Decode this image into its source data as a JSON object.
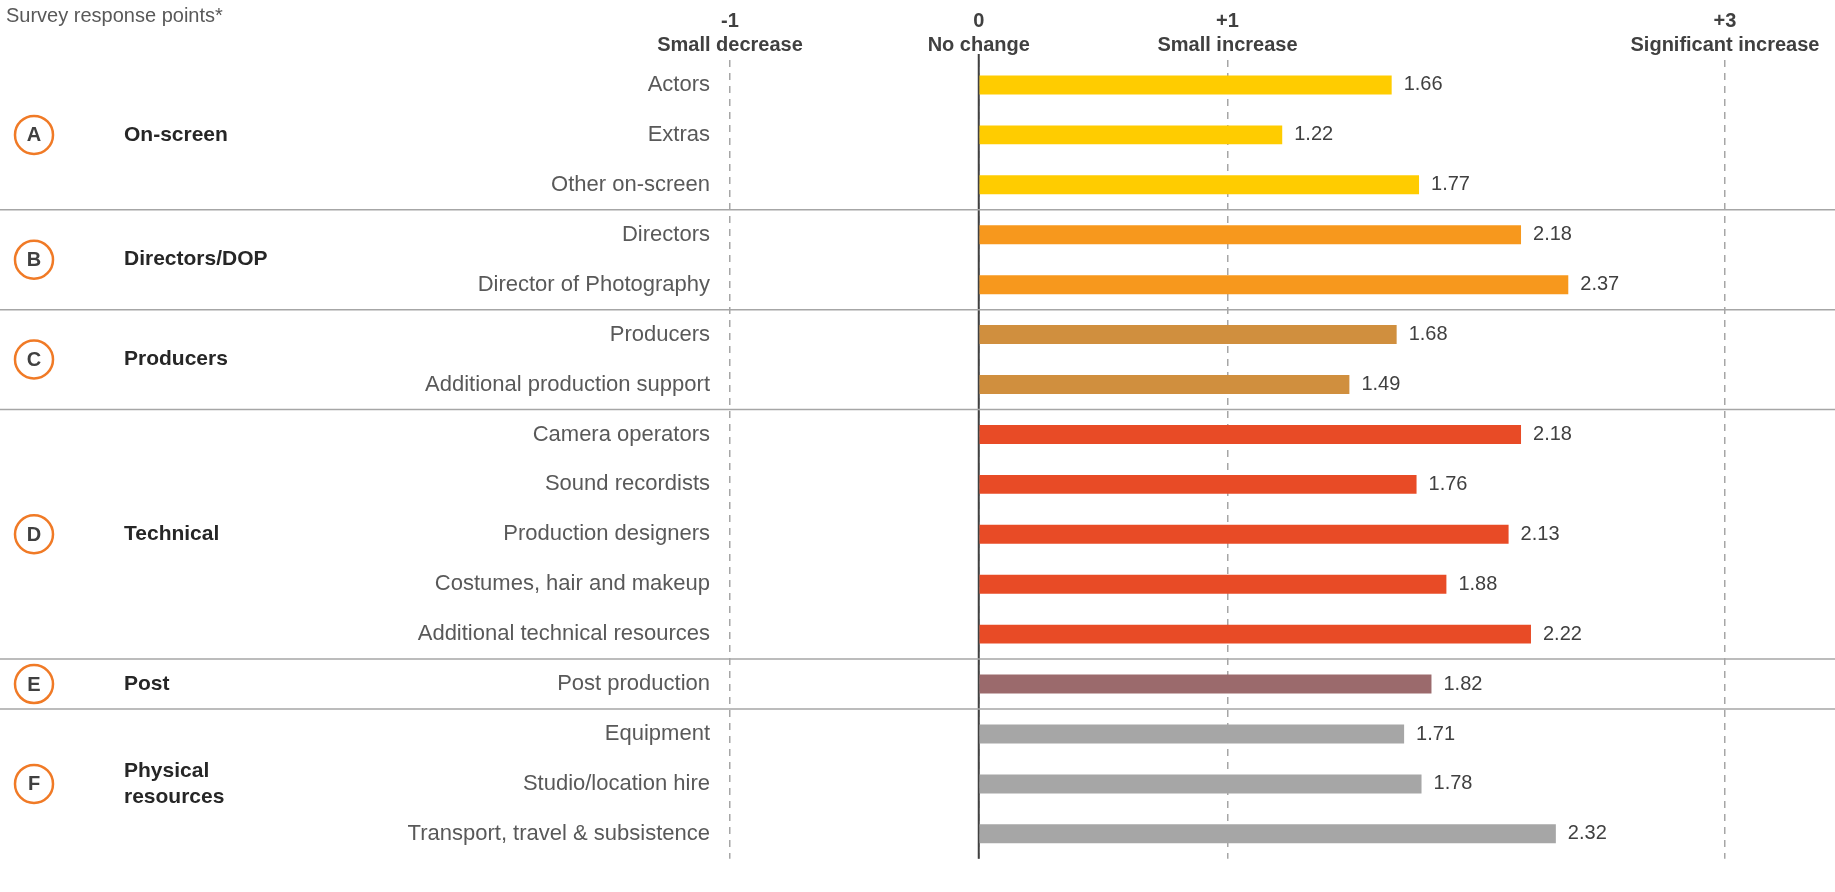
{
  "chart_data": {
    "type": "bar",
    "orientation": "horizontal",
    "title": "Survey response points*",
    "categories": [
      "Actors",
      "Extras",
      "Other on-screen",
      "Directors",
      "Director of Photography",
      "Producers",
      "Additional production support",
      "Camera operators",
      "Sound recordists",
      "Production designers",
      "Costumes, hair and makeup",
      "Additional technical resources",
      "Post production",
      "Equipment",
      "Studio/location hire",
      "Transport, travel & subsistence"
    ],
    "values": [
      1.66,
      1.22,
      1.77,
      2.18,
      2.37,
      1.68,
      1.49,
      2.18,
      1.76,
      2.13,
      1.88,
      2.22,
      1.82,
      1.71,
      1.78,
      2.32
    ],
    "colors": [
      "#ffcc00",
      "#ffcc00",
      "#ffcc00",
      "#f7981d",
      "#f7981d",
      "#d08f3e",
      "#d08f3e",
      "#e84b26",
      "#e84b26",
      "#e84b26",
      "#e84b26",
      "#e84b26",
      "#9b6a6c",
      "#a6a6a6",
      "#a6a6a6",
      "#a6a6a6"
    ],
    "data_labels": true,
    "xlim": [
      -1,
      3
    ],
    "xticks": [
      {
        "value": -1,
        "label": "-1\nSmall decrease"
      },
      {
        "value": 0,
        "label": "0\nNo change"
      },
      {
        "value": 1,
        "label": "+1\nSmall increase"
      },
      {
        "value": 3,
        "label": "+3\nSignificant increase"
      }
    ],
    "grid": "x",
    "legend": false,
    "ref_lines": [
      {
        "axis": "x",
        "value": 0,
        "color": "#404040",
        "line_style": "solid"
      }
    ],
    "annotations": [
      "A",
      "On-screen",
      "B",
      "Directors/DOP",
      "C",
      "Producers",
      "D",
      "Technical",
      "E",
      "Post",
      "F",
      "Physical resources"
    ]
  }
}
